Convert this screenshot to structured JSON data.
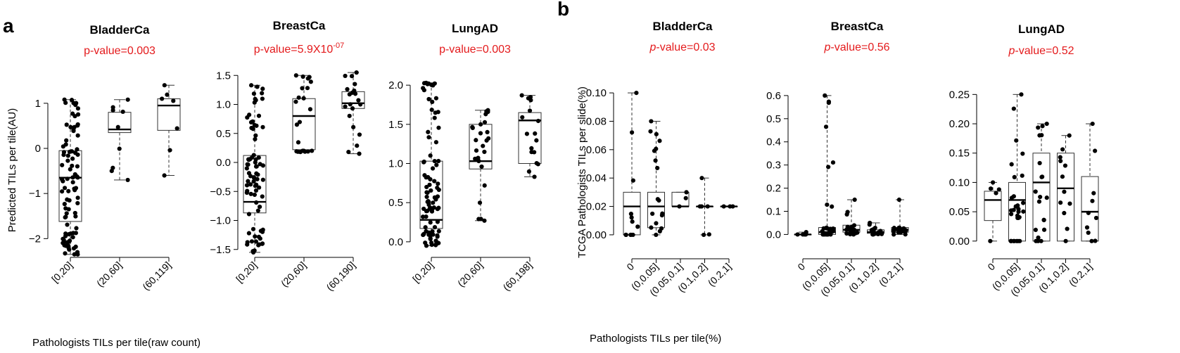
{
  "panel_labels": [
    "a",
    "b"
  ],
  "xlabels": {
    "a": "Pathologists TILs per tile(raw count)",
    "b": "Pathologists TILs per tile(%)"
  },
  "chart_data": [
    {
      "type": "box",
      "panel": "a",
      "title": "BladderCa",
      "pvalue_text": "p-value=0.003",
      "ylabel": "Predicted TILs per tile(AU)",
      "ylim": [
        -2.4,
        1.45
      ],
      "yticks": [
        1,
        0,
        -1,
        -2
      ],
      "ytick_labels": [
        "1",
        "0",
        "−1",
        "−2"
      ],
      "categories": [
        "[0,20]",
        "(20,60]",
        "(60,119]"
      ],
      "boxes": [
        {
          "whislo": -2.35,
          "q1": -1.62,
          "med": -0.65,
          "q3": -0.05,
          "whishi": 1.08,
          "n": 90
        },
        {
          "whislo": -0.7,
          "q1": 0.35,
          "med": 0.42,
          "q3": 0.8,
          "whishi": 1.08,
          "n": 9
        },
        {
          "whislo": -0.6,
          "q1": 0.4,
          "med": 0.95,
          "q3": 1.1,
          "whishi": 1.4,
          "n": 7
        }
      ]
    },
    {
      "type": "box",
      "panel": "a",
      "title": "BreastCa",
      "pvalue_text": "p-value=5.9X10",
      "pvalue_exp": "-07",
      "ylabel": "",
      "ylim": [
        -1.6,
        1.6
      ],
      "yticks": [
        1.5,
        1.0,
        0.5,
        0.0,
        -0.5,
        -1.0,
        -1.5
      ],
      "ytick_labels": [
        "1.5",
        "1.0",
        "0.5",
        "0.0",
        "−0.5",
        "−1.0",
        "−1.5"
      ],
      "categories": [
        "[0,20]",
        "(20,60]",
        "(60,190]"
      ],
      "boxes": [
        {
          "whislo": -1.55,
          "q1": -0.87,
          "med": -0.68,
          "q3": 0.12,
          "whishi": 1.33,
          "n": 80
        },
        {
          "whislo": 0.18,
          "q1": 0.22,
          "med": 0.8,
          "q3": 1.1,
          "whishi": 1.5,
          "n": 22
        },
        {
          "whislo": 0.15,
          "q1": 0.93,
          "med": 1.02,
          "q3": 1.22,
          "whishi": 1.55,
          "n": 20
        }
      ]
    },
    {
      "type": "box",
      "panel": "a",
      "title": "LungAD",
      "pvalue_text": "p-value=0.003",
      "ylabel": "",
      "ylim": [
        -0.1,
        2.1
      ],
      "yticks": [
        2.0,
        1.5,
        1.0,
        0.5,
        0.0
      ],
      "ytick_labels": [
        "2.0",
        "1.5",
        "1.0",
        "0.5",
        "0.0"
      ],
      "categories": [
        "[0,20]",
        "(20,60]",
        "(60,198]"
      ],
      "boxes": [
        {
          "whislo": -0.05,
          "q1": 0.17,
          "med": 0.28,
          "q3": 1.03,
          "whishi": 2.03,
          "n": 90
        },
        {
          "whislo": 0.27,
          "q1": 0.93,
          "med": 1.03,
          "q3": 1.5,
          "whishi": 1.68,
          "n": 25
        },
        {
          "whislo": 0.83,
          "q1": 1.0,
          "med": 1.55,
          "q3": 1.65,
          "whishi": 1.87,
          "n": 17
        }
      ]
    },
    {
      "type": "box",
      "panel": "b",
      "title": "BladderCa",
      "pvalue_text": "p-value=0.03",
      "ylabel": "TCGA Pathologists TILs per slide(%)",
      "ylim": [
        -0.004,
        0.105
      ],
      "yticks": [
        0.1,
        0.08,
        0.06,
        0.04,
        0.02,
        0.0
      ],
      "ytick_labels": [
        "0.10",
        "0.08",
        "0.06",
        "0.04",
        "0.02",
        "0.00"
      ],
      "categories": [
        "0",
        "(0,0.05]",
        "(0.05,0.1]",
        "(0.1,0.2]",
        "(0.2,1]"
      ],
      "boxes": [
        {
          "whislo": 0.0,
          "q1": 0.0,
          "med": 0.02,
          "q3": 0.03,
          "whishi": 0.1,
          "n": 12
        },
        {
          "whislo": 0.0,
          "q1": 0.005,
          "med": 0.02,
          "q3": 0.03,
          "whishi": 0.08,
          "n": 18
        },
        {
          "whislo": 0.02,
          "q1": 0.02,
          "med": 0.02,
          "q3": 0.03,
          "whishi": 0.03,
          "n": 3
        },
        {
          "whislo": 0.0,
          "q1": 0.02,
          "med": 0.02,
          "q3": 0.02,
          "whishi": 0.04,
          "n": 6
        },
        {
          "whislo": 0.02,
          "q1": 0.02,
          "med": 0.02,
          "q3": 0.02,
          "whishi": 0.02,
          "n": 3
        }
      ]
    },
    {
      "type": "box",
      "panel": "b",
      "title": "BreastCa",
      "pvalue_text": "p-value=0.56",
      "ylabel": "",
      "ylim": [
        -0.02,
        0.63
      ],
      "yticks": [
        0.6,
        0.5,
        0.4,
        0.3,
        0.2,
        0.1,
        0.0
      ],
      "ytick_labels": [
        "0.6",
        "0.5",
        "0.4",
        "0.3",
        "0.2",
        "0.1",
        "0.0"
      ],
      "categories": [
        "0",
        "(0,0.05]",
        "(0.05,0.1]",
        "(0.1,0.2]",
        "(0.2,1]"
      ],
      "boxes": [
        {
          "whislo": 0.0,
          "q1": 0.0,
          "med": 0.0,
          "q3": 0.0,
          "whishi": 0.01,
          "n": 6
        },
        {
          "whislo": 0.0,
          "q1": 0.0,
          "med": 0.01,
          "q3": 0.03,
          "whishi": 0.6,
          "n": 30
        },
        {
          "whislo": 0.0,
          "q1": 0.01,
          "med": 0.02,
          "q3": 0.04,
          "whishi": 0.15,
          "n": 20
        },
        {
          "whislo": 0.0,
          "q1": 0.005,
          "med": 0.01,
          "q3": 0.02,
          "whishi": 0.05,
          "n": 15
        },
        {
          "whislo": 0.0,
          "q1": 0.01,
          "med": 0.02,
          "q3": 0.03,
          "whishi": 0.15,
          "n": 18
        }
      ]
    },
    {
      "type": "box",
      "panel": "b",
      "title": "LungAD",
      "pvalue_text": "p-value=0.52",
      "ylabel": "",
      "ylim": [
        -0.005,
        0.26
      ],
      "yticks": [
        0.25,
        0.2,
        0.15,
        0.1,
        0.05,
        0.0
      ],
      "ytick_labels": [
        "0.25",
        "0.20",
        "0.15",
        "0.10",
        "0.05",
        "0.00"
      ],
      "categories": [
        "0",
        "(0,0.05]",
        "(0.05,0.1]",
        "(0.1,0.2]",
        "(0.2,1]"
      ],
      "boxes": [
        {
          "whislo": 0.0,
          "q1": 0.035,
          "med": 0.07,
          "q3": 0.085,
          "whishi": 0.1,
          "n": 5
        },
        {
          "whislo": 0.0,
          "q1": 0.0,
          "med": 0.07,
          "q3": 0.1,
          "whishi": 0.25,
          "n": 30
        },
        {
          "whislo": 0.0,
          "q1": 0.0,
          "med": 0.1,
          "q3": 0.15,
          "whishi": 0.2,
          "n": 20
        },
        {
          "whislo": 0.0,
          "q1": 0.0,
          "med": 0.09,
          "q3": 0.15,
          "whishi": 0.18,
          "n": 12
        },
        {
          "whislo": 0.0,
          "q1": 0.0,
          "med": 0.05,
          "q3": 0.11,
          "whishi": 0.2,
          "n": 10
        }
      ]
    }
  ]
}
